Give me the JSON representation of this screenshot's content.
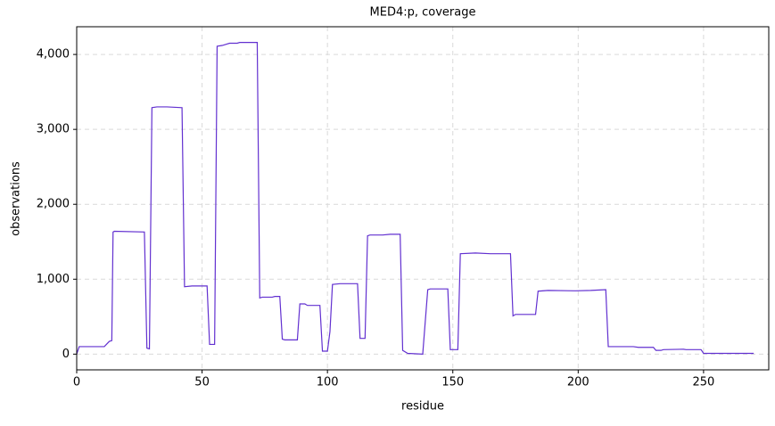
{
  "chart_data": {
    "type": "line",
    "title": "MED4:p, coverage",
    "x_label": "residue",
    "y_label": "observations",
    "color": "#6230d0",
    "grid": true,
    "xlim": [
      0,
      276
    ],
    "ylim": [
      -210,
      4370
    ],
    "xticks": [
      0,
      50,
      100,
      150,
      200,
      250
    ],
    "yticks": [
      0,
      {
        "value": 1000,
        "label": "1,000"
      },
      {
        "value": 2000,
        "label": "2,000"
      },
      {
        "value": 3000,
        "label": "3,000"
      },
      {
        "value": 4000,
        "label": "4,000"
      }
    ],
    "x": [
      0,
      1,
      11,
      13,
      14,
      14.5,
      15,
      27,
      28,
      29,
      30,
      32,
      36,
      42,
      43,
      46,
      52,
      53,
      55,
      56,
      58,
      61,
      64,
      65,
      72,
      73,
      74,
      78,
      79,
      81,
      82,
      83,
      88,
      89,
      91,
      92,
      97,
      98,
      100,
      101,
      102,
      105,
      112,
      113,
      115,
      116,
      117,
      122,
      125,
      129,
      130,
      132,
      138,
      140,
      141,
      148,
      149,
      152,
      153,
      159,
      165,
      173,
      174,
      175,
      183,
      184,
      188,
      199,
      205,
      211,
      212,
      222,
      224,
      230,
      231,
      233,
      234,
      242,
      243,
      249,
      250,
      270
    ],
    "values": [
      0,
      100,
      100,
      170,
      180,
      1630,
      1640,
      1630,
      80,
      70,
      3290,
      3300,
      3300,
      3290,
      900,
      910,
      910,
      130,
      130,
      4110,
      4120,
      4150,
      4150,
      4160,
      4160,
      750,
      760,
      760,
      770,
      770,
      200,
      190,
      190,
      670,
      670,
      650,
      650,
      40,
      40,
      300,
      930,
      940,
      940,
      210,
      210,
      1580,
      1590,
      1590,
      1600,
      1600,
      50,
      10,
      0,
      860,
      870,
      870,
      60,
      60,
      1340,
      1350,
      1340,
      1340,
      510,
      530,
      530,
      840,
      850,
      845,
      850,
      860,
      100,
      100,
      90,
      90,
      50,
      50,
      60,
      65,
      60,
      60,
      10,
      10
    ]
  }
}
